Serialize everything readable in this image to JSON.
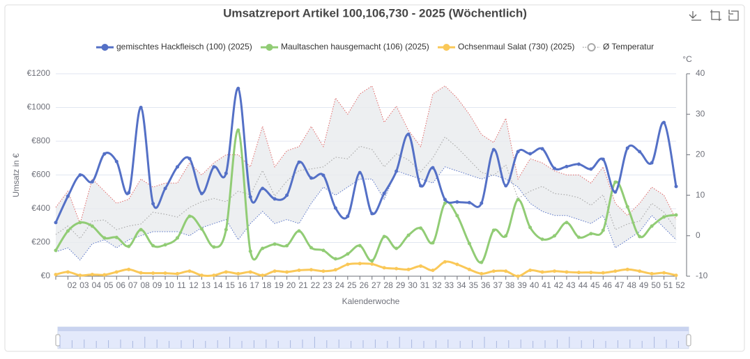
{
  "chart_data": {
    "type": "line",
    "title": "Umsatzreport Artikel 100,106,730 - 2025 (Wöchentlich)",
    "x_label": "Kalenderwoche",
    "y_label": "Umsatz in €",
    "y2_label": "°C",
    "categories": [
      null,
      "02",
      "03",
      "04",
      "05",
      "06",
      "07",
      "08",
      "09",
      "10",
      "11",
      "12",
      "13",
      "14",
      "15",
      "16",
      "17",
      "18",
      "19",
      "20",
      "21",
      "22",
      "23",
      "24",
      "25",
      "26",
      "27",
      "28",
      "29",
      "30",
      "31",
      "32",
      "33",
      "34",
      "35",
      "36",
      "37",
      "38",
      "39",
      "40",
      "41",
      "42",
      "43",
      "44",
      "45",
      "46",
      "47",
      "48",
      "49",
      "50",
      "51",
      "52"
    ],
    "ylim": [
      0,
      1200
    ],
    "yticks": [
      {
        "value": 0,
        "label": "€0"
      },
      {
        "value": 200,
        "label": "€200"
      },
      {
        "value": 400,
        "label": "€400"
      },
      {
        "value": 600,
        "label": "€600"
      },
      {
        "value": 800,
        "label": "€800"
      },
      {
        "value": 1000,
        "label": "€1000"
      },
      {
        "value": 1200,
        "label": "€1200"
      }
    ],
    "y2lim": [
      -10,
      40
    ],
    "y2ticks": [
      -10,
      0,
      10,
      20,
      30,
      40
    ],
    "grid": true,
    "series": [
      {
        "name": "gemischtes Hackfleisch (100) (2025)",
        "color": "#5470c6",
        "smooth": true,
        "values": [
          318,
          474,
          600,
          560,
          725,
          680,
          495,
          1000,
          430,
          520,
          648,
          697,
          490,
          648,
          610,
          1113,
          470,
          520,
          458,
          480,
          676,
          582,
          598,
          404,
          355,
          614,
          371,
          491,
          622,
          841,
          536,
          643,
          454,
          440,
          436,
          433,
          750,
          536,
          738,
          726,
          755,
          639,
          650,
          664,
          635,
          693,
          499,
          759,
          738,
          672,
          911,
          532
        ]
      },
      {
        "name": "Maultaschen hausgemacht (106) (2025)",
        "color": "#91cc75",
        "smooth": true,
        "values": [
          153,
          268,
          318,
          297,
          227,
          230,
          177,
          276,
          181,
          186,
          227,
          355,
          280,
          173,
          276,
          866,
          148,
          165,
          190,
          181,
          268,
          169,
          153,
          103,
          132,
          181,
          91,
          235,
          165,
          243,
          285,
          198,
          433,
          359,
          194,
          82,
          272,
          239,
          454,
          289,
          219,
          239,
          318,
          231,
          252,
          272,
          557,
          412,
          235,
          297,
          351,
          363
        ]
      },
      {
        "name": "Ochsenmaul Salat (730) (2025)",
        "color": "#fac858",
        "smooth": true,
        "values": [
          10,
          25,
          5,
          10,
          8,
          25,
          40,
          20,
          18,
          18,
          15,
          30,
          5,
          5,
          25,
          15,
          25,
          5,
          30,
          25,
          35,
          38,
          30,
          38,
          70,
          75,
          72,
          50,
          45,
          40,
          60,
          35,
          85,
          70,
          40,
          15,
          30,
          30,
          0,
          35,
          25,
          30,
          25,
          22,
          22,
          20,
          30,
          40,
          30,
          15,
          20,
          5
        ]
      },
      {
        "name": "Ø Temperatur",
        "color": "#aaaaaa",
        "axis": "y2",
        "dashed": true,
        "values": [
          0.3,
          2.4,
          -0.7,
          3.6,
          3.9,
          1.5,
          2.4,
          2.9,
          5.8,
          5.3,
          4.6,
          7,
          8.4,
          9.2,
          8.4,
          11,
          10.1,
          16.1,
          9.8,
          13.5,
          16.1,
          16.5,
          17,
          19.4,
          19,
          22.1,
          21.3,
          17,
          20.2,
          18.7,
          15.8,
          19.2,
          24.4,
          21.8,
          18.7,
          15.6,
          14.9,
          17.5,
          9.2,
          11,
          12.2,
          10.4,
          10.1,
          9.4,
          7.5,
          10.1,
          1.5,
          2.9,
          3.6,
          8,
          5.8,
          1.5
        ]
      }
    ],
    "band": {
      "fill": "#e9ebee",
      "upper": {
        "color": "#e06666",
        "axis": "y2",
        "values": [
          7,
          11,
          3,
          14,
          11,
          8,
          9,
          14,
          12,
          13,
          13,
          18,
          15,
          18,
          20,
          20,
          17,
          27,
          17,
          21,
          22,
          27,
          22,
          34,
          30,
          35,
          37,
          28,
          32,
          26,
          22,
          35,
          37,
          34,
          30,
          25,
          23,
          29,
          14,
          19,
          18,
          16,
          15,
          15,
          13,
          17,
          8,
          5,
          8,
          12,
          10,
          4
        ]
      },
      "lower": {
        "color": "#5470c6",
        "axis": "y2",
        "values": [
          -4,
          -3,
          -6,
          -2,
          -1,
          -3,
          -1,
          0,
          1,
          1,
          1,
          0,
          2,
          3,
          4,
          -1,
          3,
          6,
          3,
          4,
          3,
          8,
          12,
          10,
          12,
          14,
          14,
          9,
          16,
          15,
          14,
          13,
          17,
          16,
          15,
          14,
          15,
          14,
          12,
          8,
          6,
          5,
          5,
          4,
          3,
          5,
          -3,
          -1,
          1,
          5,
          2,
          -1
        ]
      }
    }
  }
}
